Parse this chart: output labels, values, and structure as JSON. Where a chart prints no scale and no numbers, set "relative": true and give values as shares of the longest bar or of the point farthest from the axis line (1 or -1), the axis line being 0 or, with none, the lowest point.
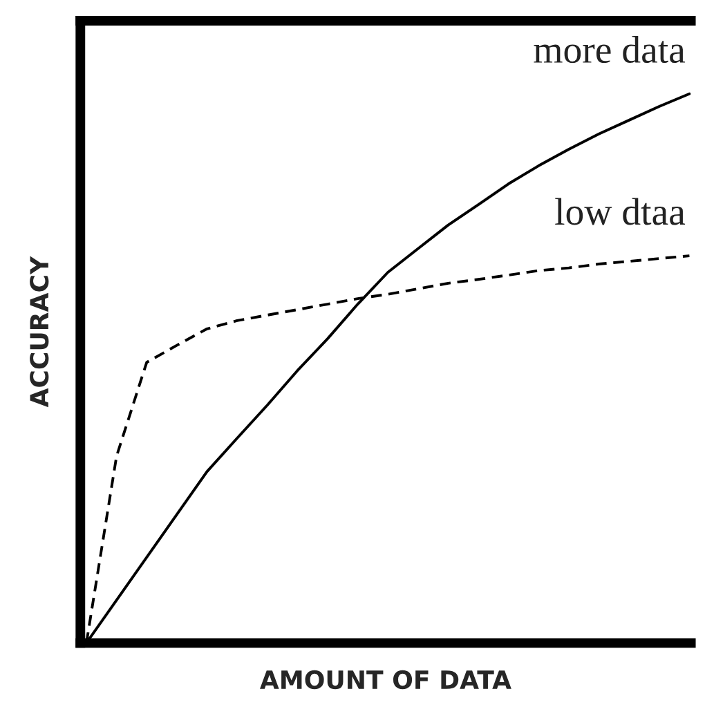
{
  "chart_data": {
    "type": "line",
    "relative": true,
    "xlabel": "AMOUNT OF DATA",
    "ylabel": "ACCURACY",
    "categories": [
      null,
      null,
      null,
      null,
      null,
      null,
      null,
      null,
      null,
      null,
      null,
      null,
      null,
      null,
      null,
      null,
      null,
      null,
      null,
      null,
      null
    ],
    "marker": "none",
    "series": [
      {
        "name": "more data",
        "color": "#000000",
        "line_style": "solid",
        "values": [
          0,
          0.078,
          0.156,
          0.234,
          0.312,
          0.373,
          0.433,
          0.496,
          0.554,
          0.617,
          0.675,
          0.718,
          0.761,
          0.798,
          0.836,
          0.869,
          0.899,
          0.927,
          0.952,
          0.977,
          1
        ]
      },
      {
        "name": "low dtaa",
        "color": "#000000",
        "line_style": "dashed",
        "values": [
          0,
          0.34,
          0.511,
          0.542,
          0.572,
          0.587,
          0.597,
          0.607,
          0.617,
          0.627,
          0.635,
          0.645,
          0.655,
          0.662,
          0.67,
          0.678,
          0.683,
          0.69,
          0.695,
          0.7,
          0.705
        ]
      }
    ]
  }
}
